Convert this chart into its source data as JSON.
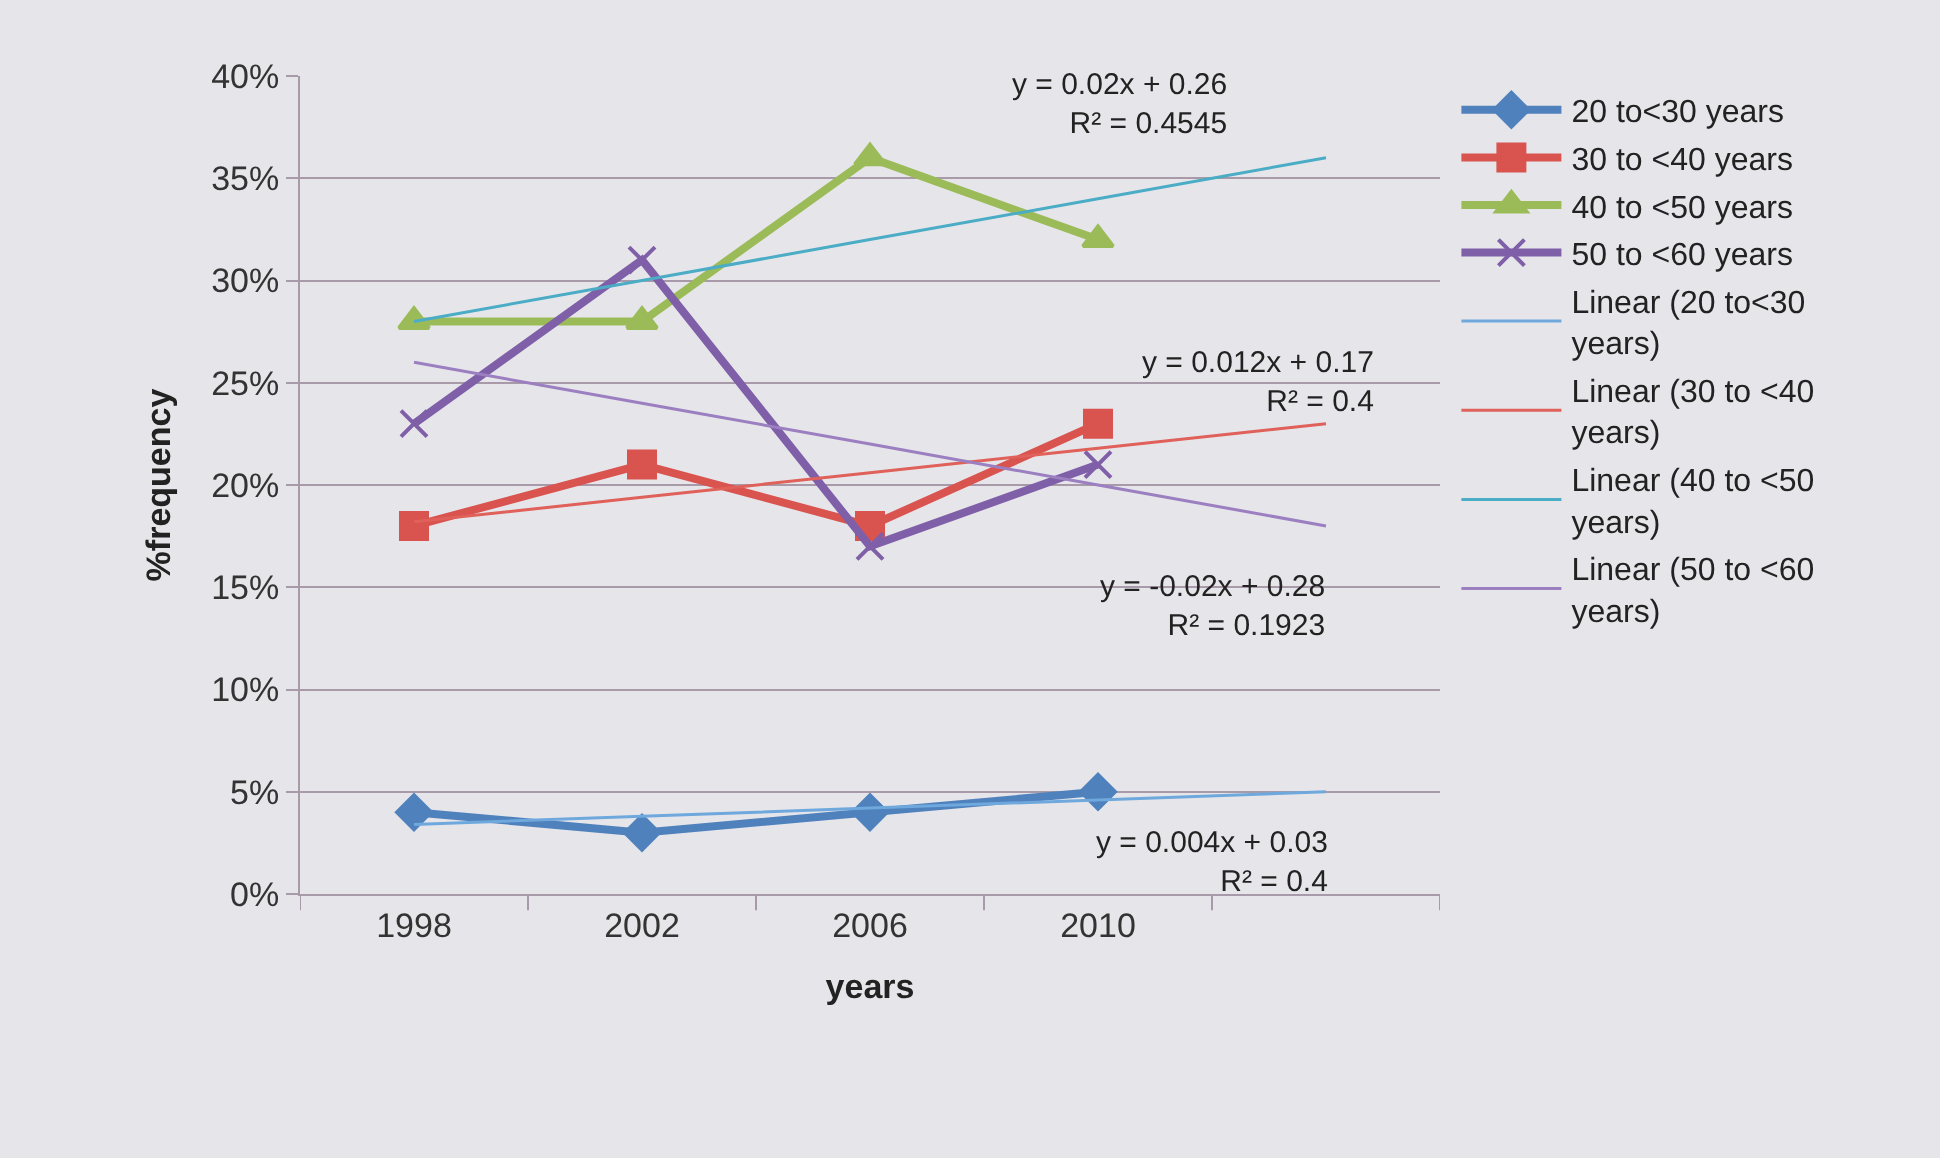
{
  "chart_data": {
    "type": "line",
    "xlabel": "years",
    "ylabel": "%frequency",
    "categories": [
      "1998",
      "2002",
      "2006",
      "2010",
      null
    ],
    "series": [
      {
        "name": "20 to<30 years",
        "color": "#4f81bd",
        "marker": "diamond",
        "values": [
          4,
          3,
          4,
          5,
          null
        ]
      },
      {
        "name": "30 to <40 years",
        "color": "#d9534f",
        "marker": "square",
        "values": [
          18,
          21,
          18,
          23,
          null
        ]
      },
      {
        "name": "40 to <50 years",
        "color": "#9bbb59",
        "marker": "triangle",
        "values": [
          28,
          28,
          36,
          32,
          null
        ]
      },
      {
        "name": "50 to <60 years",
        "color": "#7f5fa8",
        "marker": "cross",
        "values": [
          23,
          31,
          17,
          21,
          null
        ]
      },
      {
        "name": "Linear (20 to<30 years)",
        "color": "#6fa8dc",
        "marker": "none",
        "values": [
          3.4,
          3.8,
          4.2,
          4.6,
          5.0
        ]
      },
      {
        "name": "Linear (30 to <40 years)",
        "color": "#e0605a",
        "marker": "none",
        "values": [
          18.2,
          19.4,
          20.6,
          21.8,
          23.0
        ]
      },
      {
        "name": "Linear (40 to <50 years)",
        "color": "#4bacc6",
        "marker": "none",
        "values": [
          28,
          30,
          32,
          34,
          36
        ]
      },
      {
        "name": "Linear (50 to <60 years)",
        "color": "#9b7fc0",
        "marker": "none",
        "values": [
          26,
          24,
          22,
          20,
          18
        ]
      }
    ],
    "ylim": [
      0,
      40
    ],
    "yticks": [
      {
        "value": 0,
        "label": "0%"
      },
      {
        "value": 5,
        "label": "5%"
      },
      {
        "value": 10,
        "label": "10%"
      },
      {
        "value": 15,
        "label": "15%"
      },
      {
        "value": 20,
        "label": "20%"
      },
      {
        "value": 25,
        "label": "25%"
      },
      {
        "value": 30,
        "label": "30%"
      },
      {
        "value": 35,
        "label": "35%"
      },
      {
        "value": 40,
        "label": "40%"
      }
    ],
    "grid": "y",
    "legend": "right",
    "line_style": "solid",
    "annotations": [
      "y = 0.02x + 0.26\nR² = 0.4545",
      "y = 0.012x + 0.17\nR² = 0.4",
      "y = -0.02x + 0.28\nR² = 0.1923",
      "y = 0.004x + 0.03\nR² = 0.4"
    ]
  }
}
